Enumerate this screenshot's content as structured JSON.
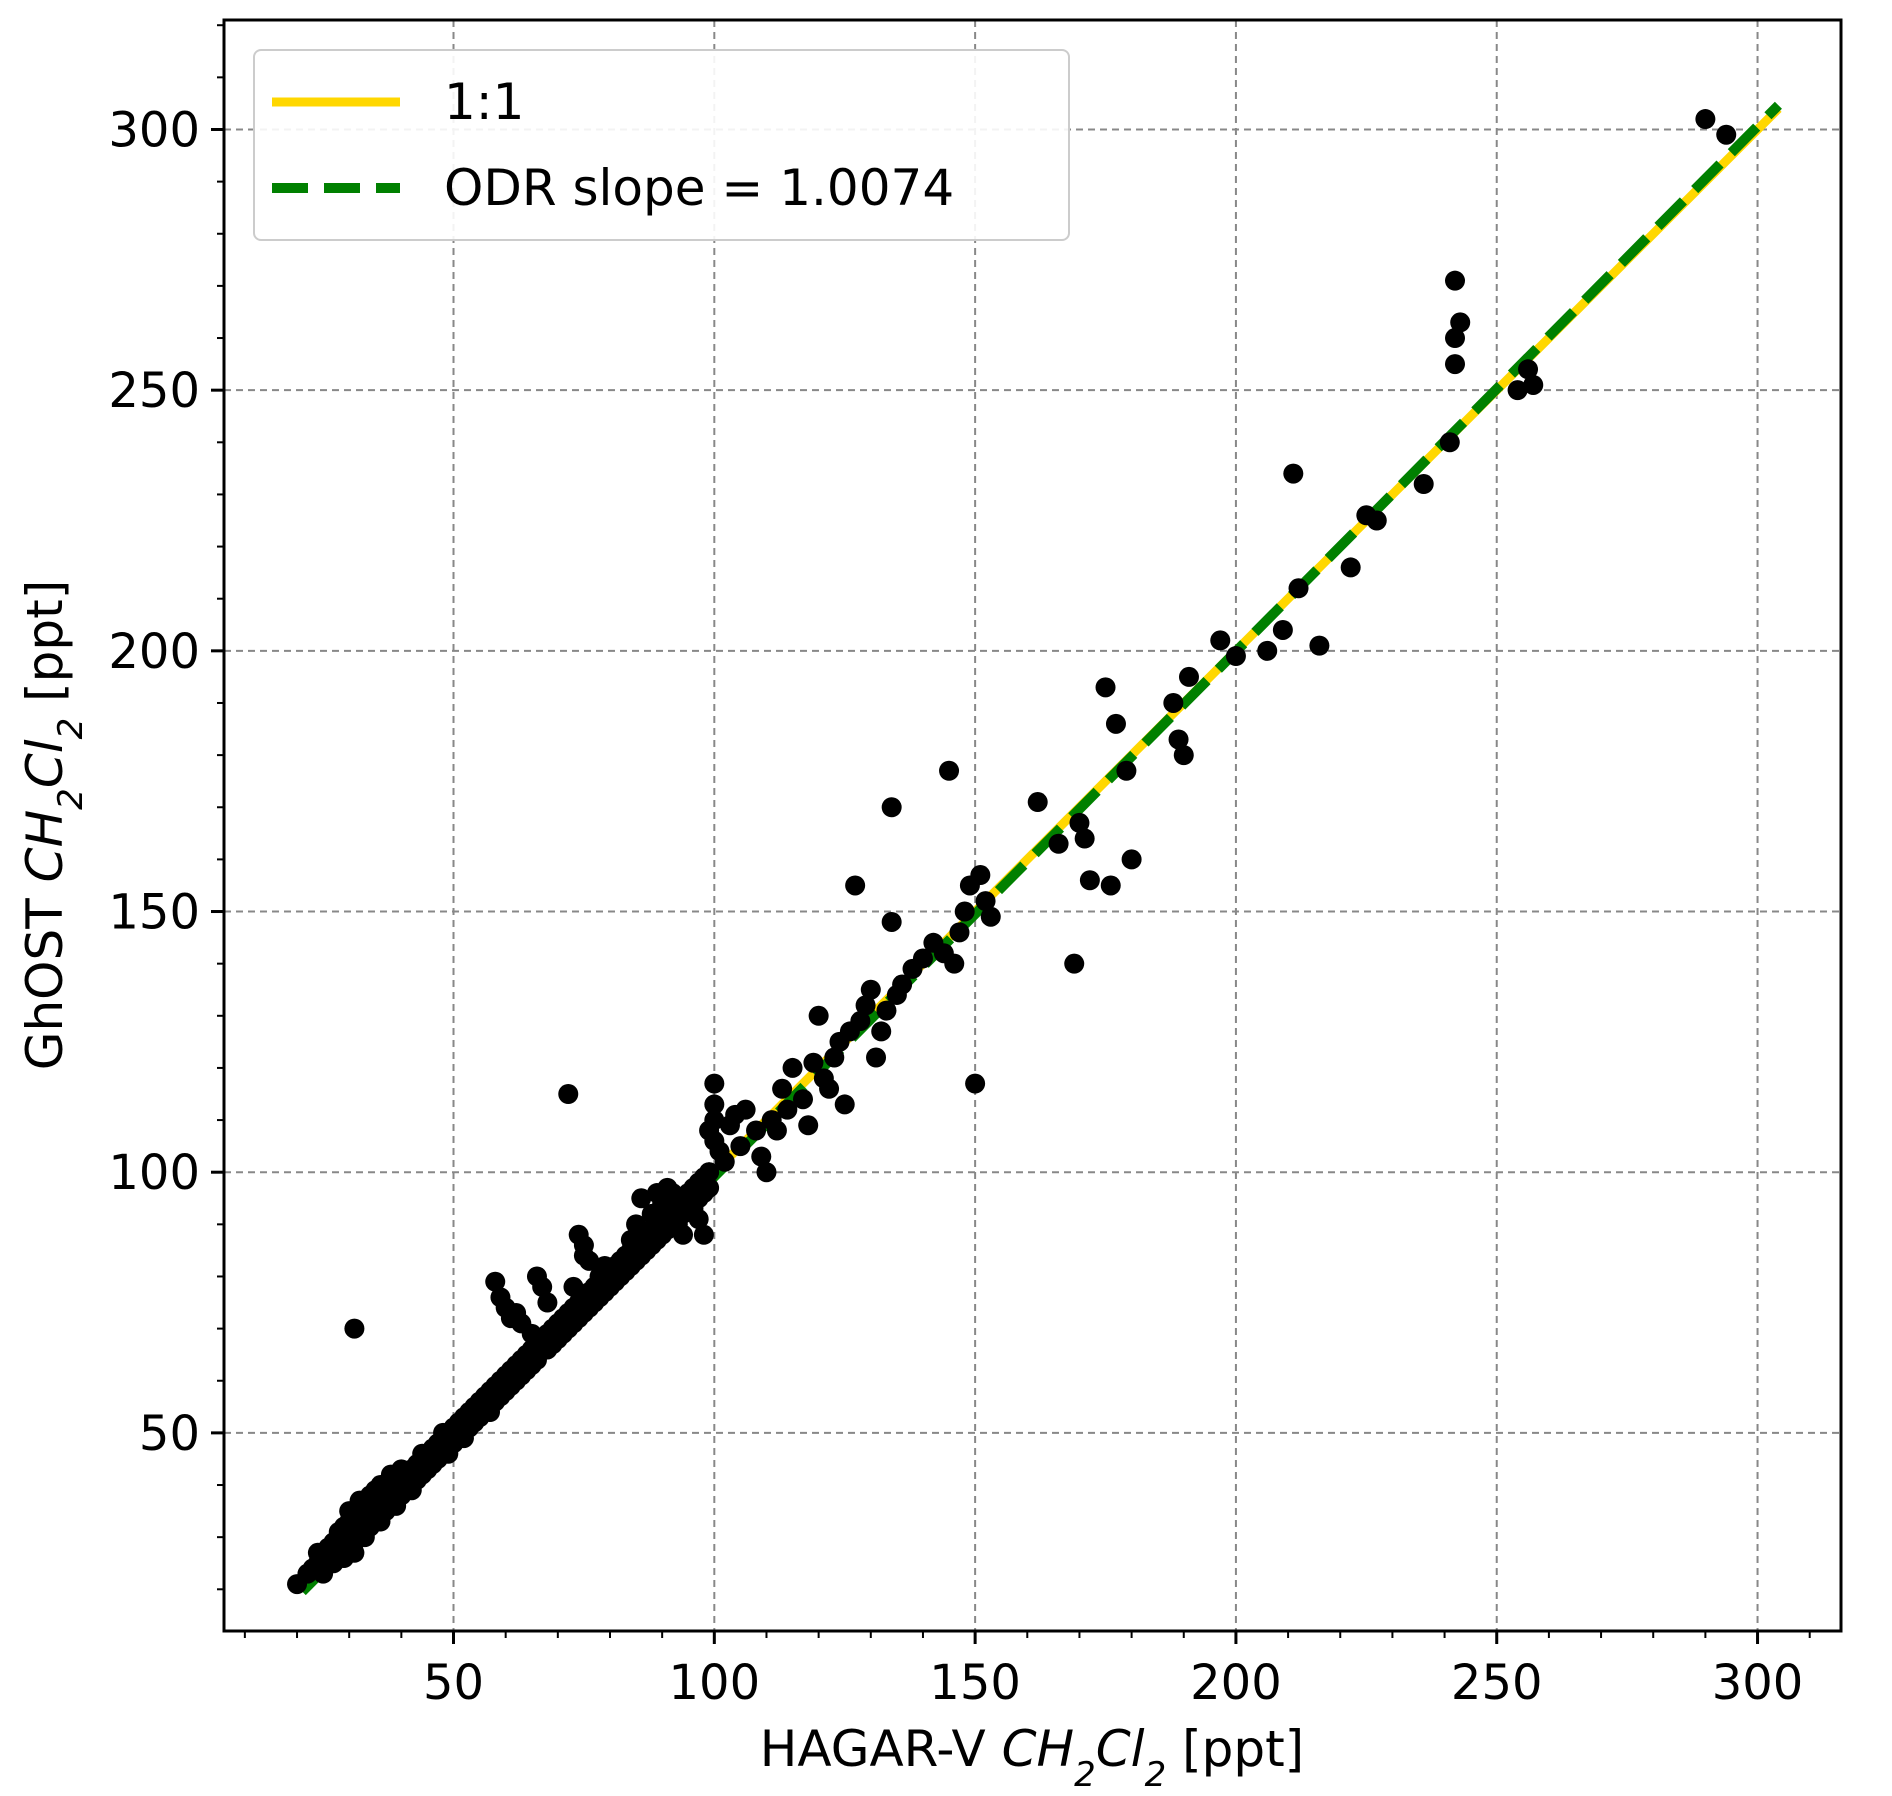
{
  "chart_data": {
    "type": "scatter",
    "xlabel": {
      "prefix": "HAGAR-V ",
      "species": "CH2Cl2",
      "suffix": " [ppt]"
    },
    "ylabel": {
      "prefix": "GhOST ",
      "species": "CH2Cl2",
      "suffix": " [ppt]"
    },
    "xlim": [
      6,
      316
    ],
    "ylim": [
      12,
      321
    ],
    "xticks": [
      50,
      100,
      150,
      200,
      250,
      300
    ],
    "yticks": [
      50,
      100,
      150,
      200,
      250,
      300
    ],
    "x_minor_step": 10,
    "y_minor_step": 10,
    "grid": true,
    "legend": {
      "position": "top-left",
      "entries": [
        {
          "label": "1:1",
          "color": "#FFD700",
          "style": "solid"
        },
        {
          "label": "ODR slope = 1.0074",
          "color": "#008000",
          "style": "dashed"
        }
      ]
    },
    "lines": [
      {
        "name": "1:1",
        "slope": 1.0,
        "intercept": 0,
        "x_range": [
          20,
          304
        ],
        "color": "#FFD700"
      },
      {
        "name": "ODR slope = 1.0074",
        "slope": 1.0074,
        "intercept": -1.6,
        "x_range": [
          21,
          304
        ],
        "color": "#008000"
      }
    ],
    "points": [
      [
        20,
        21
      ],
      [
        22,
        23
      ],
      [
        23,
        24
      ],
      [
        24,
        25
      ],
      [
        24,
        27
      ],
      [
        25,
        23
      ],
      [
        26,
        26
      ],
      [
        26,
        28
      ],
      [
        27,
        25
      ],
      [
        27,
        29
      ],
      [
        28,
        27
      ],
      [
        28,
        31
      ],
      [
        29,
        26
      ],
      [
        29,
        28
      ],
      [
        29,
        32
      ],
      [
        30,
        30
      ],
      [
        30,
        33
      ],
      [
        30,
        35
      ],
      [
        31,
        27
      ],
      [
        31,
        29
      ],
      [
        31,
        33
      ],
      [
        32,
        31
      ],
      [
        32,
        35
      ],
      [
        32,
        37
      ],
      [
        33,
        30
      ],
      [
        33,
        33
      ],
      [
        33,
        36
      ],
      [
        34,
        32
      ],
      [
        34,
        35
      ],
      [
        34,
        38
      ],
      [
        35,
        34
      ],
      [
        35,
        36
      ],
      [
        35,
        39
      ],
      [
        36,
        33
      ],
      [
        36,
        37
      ],
      [
        36,
        40
      ],
      [
        37,
        35
      ],
      [
        37,
        38
      ],
      [
        38,
        37
      ],
      [
        38,
        40
      ],
      [
        38,
        42
      ],
      [
        39,
        36
      ],
      [
        39,
        39
      ],
      [
        40,
        38
      ],
      [
        40,
        41
      ],
      [
        40,
        43
      ],
      [
        41,
        40
      ],
      [
        41,
        42
      ],
      [
        42,
        39
      ],
      [
        42,
        43
      ],
      [
        43,
        41
      ],
      [
        43,
        44
      ],
      [
        44,
        42
      ],
      [
        44,
        46
      ],
      [
        45,
        43
      ],
      [
        45,
        46
      ],
      [
        46,
        44
      ],
      [
        46,
        47
      ],
      [
        47,
        45
      ],
      [
        47,
        48
      ],
      [
        48,
        47
      ],
      [
        48,
        50
      ],
      [
        49,
        46
      ],
      [
        49,
        49
      ],
      [
        50,
        48
      ],
      [
        50,
        51
      ],
      [
        51,
        50
      ],
      [
        51,
        52
      ],
      [
        52,
        49
      ],
      [
        52,
        53
      ],
      [
        53,
        51
      ],
      [
        53,
        54
      ],
      [
        54,
        52
      ],
      [
        54,
        55
      ],
      [
        55,
        53
      ],
      [
        55,
        56
      ],
      [
        56,
        55
      ],
      [
        56,
        57
      ],
      [
        57,
        54
      ],
      [
        57,
        58
      ],
      [
        58,
        56
      ],
      [
        58,
        59
      ],
      [
        59,
        57
      ],
      [
        59,
        60
      ],
      [
        60,
        58
      ],
      [
        60,
        61
      ],
      [
        61,
        59
      ],
      [
        61,
        62
      ],
      [
        62,
        60
      ],
      [
        62,
        63
      ],
      [
        63,
        61
      ],
      [
        63,
        64
      ],
      [
        64,
        62
      ],
      [
        64,
        65
      ],
      [
        65,
        63
      ],
      [
        65,
        66
      ],
      [
        66,
        64
      ],
      [
        66,
        67
      ],
      [
        67,
        66
      ],
      [
        67,
        68
      ],
      [
        68,
        66
      ],
      [
        68,
        69
      ],
      [
        69,
        67
      ],
      [
        69,
        70
      ],
      [
        70,
        68
      ],
      [
        70,
        71
      ],
      [
        71,
        69
      ],
      [
        71,
        72
      ],
      [
        72,
        70
      ],
      [
        72,
        73
      ],
      [
        73,
        71
      ],
      [
        73,
        74
      ],
      [
        74,
        72
      ],
      [
        74,
        75
      ],
      [
        75,
        73
      ],
      [
        75,
        76
      ],
      [
        76,
        74
      ],
      [
        76,
        77
      ],
      [
        77,
        75
      ],
      [
        77,
        78
      ],
      [
        78,
        76
      ],
      [
        78,
        79
      ],
      [
        79,
        77
      ],
      [
        79,
        80
      ],
      [
        80,
        78
      ],
      [
        80,
        81
      ],
      [
        81,
        79
      ],
      [
        81,
        82
      ],
      [
        82,
        80
      ],
      [
        82,
        83
      ],
      [
        83,
        81
      ],
      [
        83,
        84
      ],
      [
        84,
        82
      ],
      [
        84,
        85
      ],
      [
        85,
        83
      ],
      [
        85,
        86
      ],
      [
        86,
        84
      ],
      [
        86,
        87
      ],
      [
        87,
        85
      ],
      [
        87,
        88
      ],
      [
        88,
        86
      ],
      [
        88,
        89
      ],
      [
        89,
        87
      ],
      [
        89,
        90
      ],
      [
        90,
        88
      ],
      [
        90,
        91
      ],
      [
        91,
        89
      ],
      [
        91,
        92
      ],
      [
        92,
        90
      ],
      [
        92,
        93
      ],
      [
        93,
        91
      ],
      [
        93,
        94
      ],
      [
        94,
        92
      ],
      [
        94,
        95
      ],
      [
        95,
        93
      ],
      [
        95,
        96
      ],
      [
        96,
        94
      ],
      [
        96,
        97
      ],
      [
        97,
        95
      ],
      [
        97,
        98
      ],
      [
        98,
        96
      ],
      [
        98,
        99
      ],
      [
        99,
        97
      ],
      [
        99,
        100
      ],
      [
        24,
        24
      ],
      [
        27,
        29
      ],
      [
        30,
        28
      ],
      [
        33,
        34
      ],
      [
        36,
        35
      ],
      [
        39,
        41
      ],
      [
        42,
        40
      ],
      [
        45,
        45
      ],
      [
        48,
        48
      ],
      [
        51,
        51
      ],
      [
        54,
        54
      ],
      [
        57,
        57
      ],
      [
        60,
        60
      ],
      [
        63,
        63
      ],
      [
        66,
        65
      ],
      [
        69,
        69
      ],
      [
        72,
        72
      ],
      [
        75,
        75
      ],
      [
        78,
        78
      ],
      [
        81,
        81
      ],
      [
        84,
        84
      ],
      [
        87,
        87
      ],
      [
        90,
        90
      ],
      [
        93,
        93
      ],
      [
        96,
        96
      ],
      [
        31,
        70
      ],
      [
        58,
        79
      ],
      [
        59,
        76
      ],
      [
        60,
        74
      ],
      [
        61,
        72
      ],
      [
        62,
        73
      ],
      [
        63,
        71
      ],
      [
        65,
        69
      ],
      [
        66,
        80
      ],
      [
        67,
        78
      ],
      [
        68,
        75
      ],
      [
        72,
        115
      ],
      [
        73,
        78
      ],
      [
        74,
        88
      ],
      [
        75,
        86
      ],
      [
        75,
        84
      ],
      [
        76,
        83
      ],
      [
        78,
        80
      ],
      [
        79,
        82
      ],
      [
        80,
        79
      ],
      [
        82,
        81
      ],
      [
        84,
        87
      ],
      [
        85,
        90
      ],
      [
        86,
        95
      ],
      [
        88,
        92
      ],
      [
        89,
        96
      ],
      [
        90,
        94
      ],
      [
        91,
        97
      ],
      [
        92,
        96
      ],
      [
        93,
        90
      ],
      [
        94,
        88
      ],
      [
        95,
        95
      ],
      [
        96,
        93
      ],
      [
        97,
        91
      ],
      [
        98,
        88
      ],
      [
        99,
        100
      ],
      [
        99,
        108
      ],
      [
        100,
        106
      ],
      [
        100,
        110
      ],
      [
        100,
        113
      ],
      [
        100,
        117
      ],
      [
        101,
        104
      ],
      [
        102,
        102
      ],
      [
        103,
        109
      ],
      [
        104,
        111
      ],
      [
        105,
        105
      ],
      [
        106,
        112
      ],
      [
        108,
        108
      ],
      [
        109,
        103
      ],
      [
        110,
        100
      ],
      [
        111,
        110
      ],
      [
        112,
        108
      ],
      [
        113,
        116
      ],
      [
        114,
        112
      ],
      [
        115,
        120
      ],
      [
        117,
        114
      ],
      [
        118,
        109
      ],
      [
        119,
        121
      ],
      [
        120,
        130
      ],
      [
        121,
        118
      ],
      [
        122,
        116
      ],
      [
        123,
        122
      ],
      [
        124,
        125
      ],
      [
        125,
        113
      ],
      [
        126,
        127
      ],
      [
        127,
        155
      ],
      [
        128,
        129
      ],
      [
        129,
        132
      ],
      [
        130,
        135
      ],
      [
        131,
        122
      ],
      [
        132,
        127
      ],
      [
        133,
        131
      ],
      [
        134,
        148
      ],
      [
        134,
        170
      ],
      [
        135,
        134
      ],
      [
        136,
        136
      ],
      [
        138,
        139
      ],
      [
        140,
        141
      ],
      [
        142,
        144
      ],
      [
        144,
        142
      ],
      [
        145,
        177
      ],
      [
        146,
        140
      ],
      [
        147,
        146
      ],
      [
        148,
        150
      ],
      [
        149,
        155
      ],
      [
        150,
        117
      ],
      [
        151,
        157
      ],
      [
        152,
        152
      ],
      [
        153,
        149
      ],
      [
        162,
        171
      ],
      [
        166,
        163
      ],
      [
        169,
        140
      ],
      [
        170,
        167
      ],
      [
        171,
        164
      ],
      [
        172,
        156
      ],
      [
        175,
        193
      ],
      [
        176,
        155
      ],
      [
        177,
        186
      ],
      [
        179,
        177
      ],
      [
        180,
        160
      ],
      [
        188,
        190
      ],
      [
        189,
        183
      ],
      [
        190,
        180
      ],
      [
        191,
        195
      ],
      [
        197,
        202
      ],
      [
        200,
        199
      ],
      [
        206,
        200
      ],
      [
        209,
        204
      ],
      [
        211,
        234
      ],
      [
        212,
        212
      ],
      [
        216,
        201
      ],
      [
        222,
        216
      ],
      [
        225,
        226
      ],
      [
        227,
        225
      ],
      [
        236,
        232
      ],
      [
        241,
        240
      ],
      [
        242,
        271
      ],
      [
        242,
        255
      ],
      [
        242,
        260
      ],
      [
        243,
        263
      ],
      [
        254,
        250
      ],
      [
        256,
        254
      ],
      [
        257,
        251
      ],
      [
        290,
        302
      ],
      [
        294,
        299
      ]
    ]
  }
}
